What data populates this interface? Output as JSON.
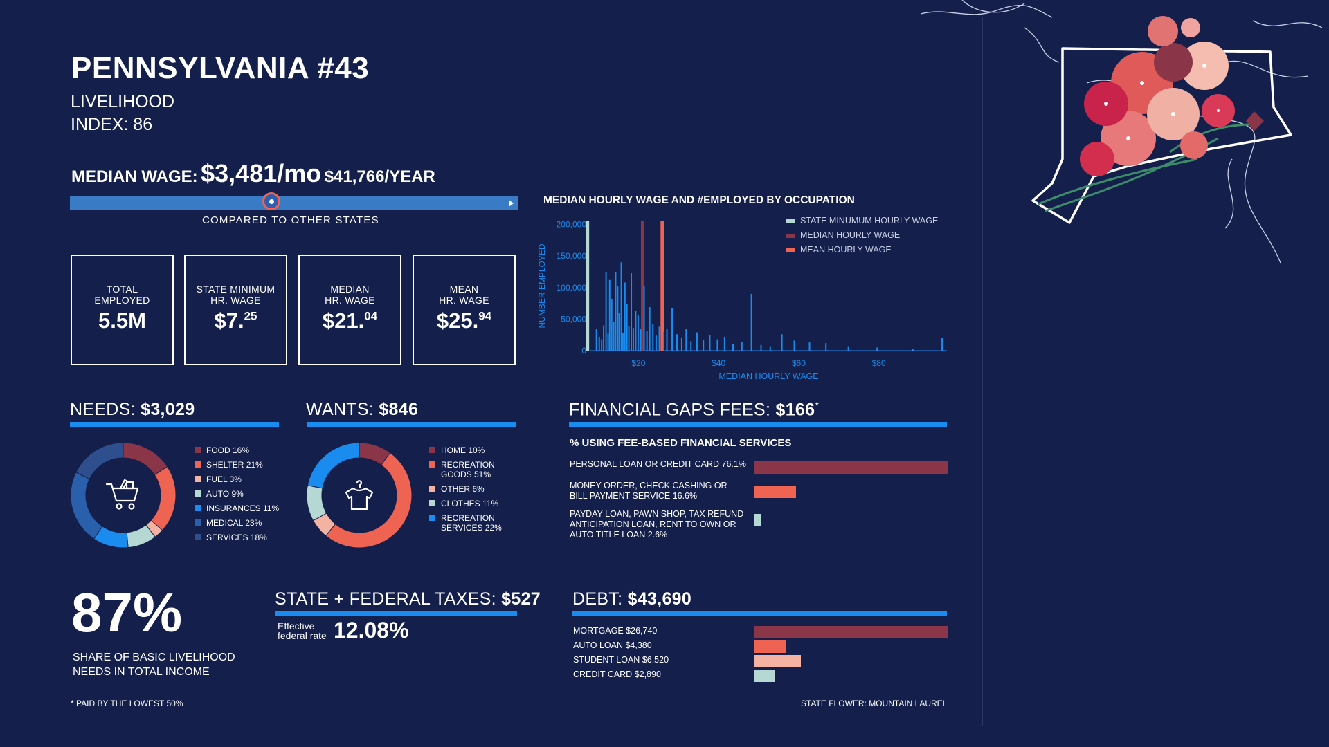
{
  "header": {
    "title": "PENNSYLVANIA #43",
    "subtitle_line1": "LIVELIHOOD",
    "subtitle_line2": "INDEX: 86"
  },
  "median_wage": {
    "label": "MEDIAN WAGE:",
    "monthly": "$3,481/mo",
    "yearly": "$41,766/YEAR",
    "compare_caption": "COMPARED TO OTHER STATES",
    "compare_position": 0.45
  },
  "stats": [
    {
      "label": "TOTAL\nEMPLOYED",
      "value": "5.5M",
      "sup": ""
    },
    {
      "label": "STATE MINIMUM\nHR. WAGE",
      "value": "$7.",
      "sup": "25"
    },
    {
      "label": "MEDIAN\nHR. WAGE",
      "value": "$21.",
      "sup": "04"
    },
    {
      "label": "MEAN\nHR. WAGE",
      "value": "$25.",
      "sup": "94"
    }
  ],
  "needs": {
    "label": "NEEDS:",
    "value": "$3,029",
    "icon": "shopping-cart-icon",
    "legend": [
      {
        "label": "FOOD 16%",
        "pct": 16,
        "color": "#8a3548"
      },
      {
        "label": "SHELTER 21%",
        "pct": 21,
        "color": "#ef6353"
      },
      {
        "label": "FUEL 3%",
        "pct": 3,
        "color": "#f4b2a2"
      },
      {
        "label": "AUTO 9%",
        "pct": 9,
        "color": "#b6d8d4"
      },
      {
        "label": "INSURANCES 11%",
        "pct": 11,
        "color": "#1a8cf0"
      },
      {
        "label": "MEDICAL 23%",
        "pct": 23,
        "color": "#2a5fab"
      },
      {
        "label": "SERVICES 18%",
        "pct": 18,
        "color": "#2f4e8e"
      }
    ]
  },
  "wants": {
    "label": "WANTS:",
    "value": "$846",
    "icon": "t-shirt-hanger-icon",
    "legend": [
      {
        "label": "HOME 10%",
        "pct": 10,
        "color": "#8a3548"
      },
      {
        "label": "RECREATION\nGOODS 51%",
        "pct": 51,
        "color": "#ef6353"
      },
      {
        "label": "OTHER 6%",
        "pct": 6,
        "color": "#f4b2a2"
      },
      {
        "label": "CLOTHES 11%",
        "pct": 11,
        "color": "#b6d8d4"
      },
      {
        "label": "RECREATION\nSERVICES 22%",
        "pct": 22,
        "color": "#1a8cf0"
      }
    ]
  },
  "financial_gaps": {
    "label": "FINANCIAL GAPS FEES:",
    "value": "$166",
    "asterisk": "*",
    "subtitle": "% USING FEE-BASED FINANCIAL SERVICES",
    "rows": [
      {
        "label": "PERSONAL LOAN OR CREDIT CARD 76.1%",
        "pct": 76.1,
        "color": "#8a3548"
      },
      {
        "label": "MONEY ORDER, CHECK CASHING OR\nBILL PAYMENT SERVICE 16.6%",
        "pct": 16.6,
        "color": "#ef6353"
      },
      {
        "label": "PAYDAY LOAN, PAWN SHOP, TAX REFUND\nANTICIPATION LOAN, RENT TO OWN OR\nAUTO TITLE LOAN 2.6%",
        "pct": 2.6,
        "color": "#b6d8d4"
      }
    ]
  },
  "share": {
    "value": "87%",
    "caption_line1": "SHARE OF BASIC LIVELIHOOD",
    "caption_line2": "NEEDS IN TOTAL INCOME"
  },
  "taxes": {
    "label": "STATE + FEDERAL TAXES:",
    "value": "$527",
    "rate_label_line1": "Effective",
    "rate_label_line2": "federal rate",
    "rate_value": "12.08%"
  },
  "debt": {
    "label": "DEBT:",
    "value": "$43,690",
    "rows": [
      {
        "label": "MORTGAGE $26,740",
        "amount": 26740,
        "color": "#8a3548"
      },
      {
        "label": "AUTO LOAN $4,380",
        "amount": 4380,
        "color": "#ef6353"
      },
      {
        "label": "STUDENT LOAN $6,520",
        "amount": 6520,
        "color": "#f4b2a2"
      },
      {
        "label": "CREDIT CARD $2,890",
        "amount": 2890,
        "color": "#b6d8d4"
      }
    ]
  },
  "footer": {
    "note": "* PAID BY THE LOWEST 50%",
    "state_flower": "STATE FLOWER: MOUNTAIN LAUREL"
  },
  "chart_data": {
    "type": "bar",
    "title": "MEDIAN HOURLY WAGE AND #EMPLOYED BY OCCUPATION",
    "xlabel": "MEDIAN HOURLY WAGE",
    "ylabel": "NUMBER EMPLOYED",
    "xlim": [
      8,
      97
    ],
    "ylim": [
      0,
      205000
    ],
    "xticks": [
      "$20",
      "$40",
      "$60",
      "$80"
    ],
    "xtick_values": [
      20,
      40,
      60,
      80
    ],
    "yticks": [
      "0",
      "50,000",
      "100,000",
      "150,000",
      "200,000"
    ],
    "ytick_values": [
      0,
      50000,
      100000,
      150000,
      200000
    ],
    "legend": [
      {
        "name": "STATE MINUMUM HOURLY WAGE",
        "color": "#b6d8d4"
      },
      {
        "name": "MEDIAN HOURLY WAGE",
        "color": "#8a3548"
      },
      {
        "name": "MEAN HOURLY WAGE",
        "color": "#ef6353"
      }
    ],
    "reference_lines": [
      {
        "x": 7.25,
        "color": "#b6d8d4"
      },
      {
        "x": 21.04,
        "color": "#8a3548"
      },
      {
        "x": 25.94,
        "color": "#ef6353"
      }
    ],
    "series": [
      {
        "color": "#1a8cf0",
        "x": [
          9.5,
          10.2,
          10.8,
          11.3,
          11.9,
          12.4,
          12.8,
          13.3,
          13.8,
          14.3,
          14.8,
          15.2,
          15.7,
          16.1,
          16.6,
          17.1,
          17.6,
          18.2,
          18.7,
          19.3,
          19.9,
          20.5,
          21.4,
          22.1,
          22.8,
          23.6,
          24.4,
          25.2,
          26.3,
          27.1,
          28.4,
          29.6,
          30.8,
          31.9,
          33.1,
          34.6,
          36.2,
          37.8,
          39.7,
          41.5,
          43.6,
          45.8,
          48.2,
          50.6,
          52.9,
          55.8,
          58.9,
          62.7,
          66.8,
          72.4,
          79.6,
          88.5,
          95.8
        ],
        "y": [
          35000,
          22000,
          18000,
          40000,
          125000,
          27000,
          112000,
          82000,
          45000,
          125000,
          103000,
          60000,
          140000,
          28000,
          108000,
          74000,
          39000,
          123000,
          36000,
          63000,
          57000,
          34000,
          102000,
          31000,
          69000,
          42000,
          24000,
          38000,
          30000,
          35000,
          67000,
          26000,
          21000,
          34000,
          15000,
          29000,
          17000,
          25000,
          18000,
          22000,
          11000,
          14000,
          90000,
          9000,
          7000,
          26000,
          16000,
          13000,
          12000,
          7000,
          5000,
          3000,
          20000
        ]
      }
    ]
  }
}
